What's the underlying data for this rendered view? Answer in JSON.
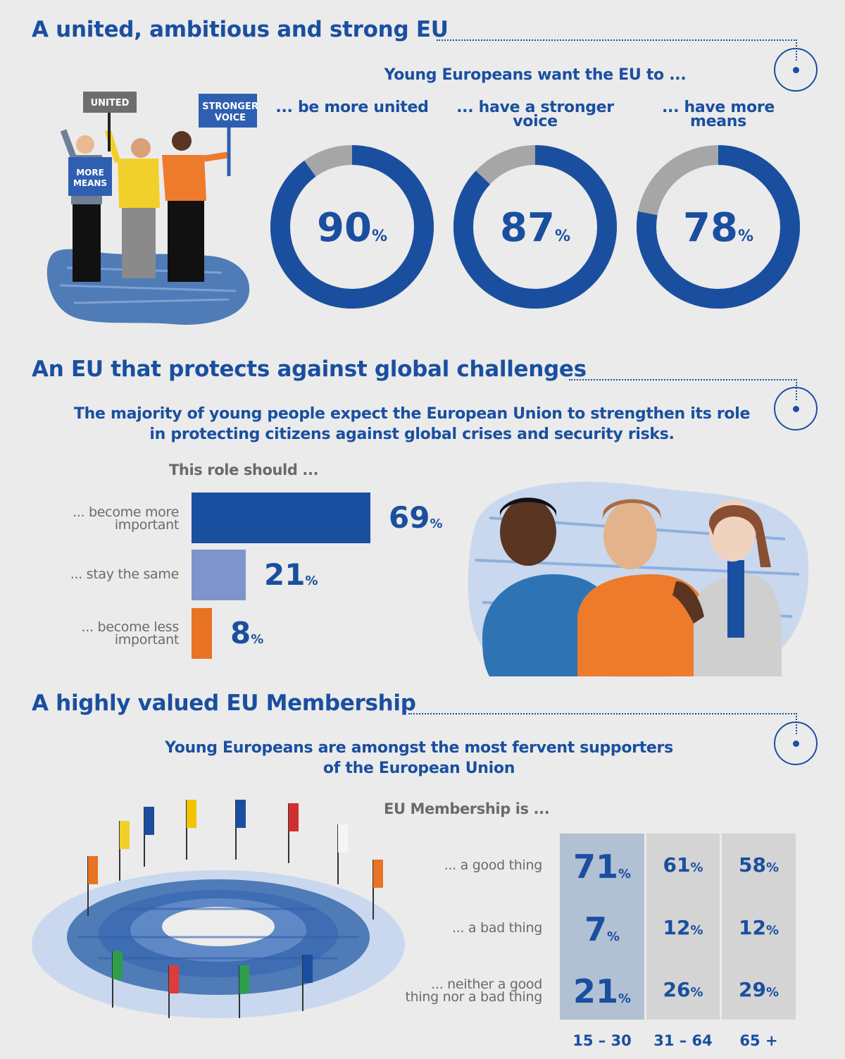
{
  "sections": [
    {
      "title": "A united, ambitious and strong EU"
    },
    {
      "title": "An EU that protects against global challenges"
    },
    {
      "title": "A highly valued EU Membership"
    }
  ],
  "section1": {
    "subtitle": "Young Europeans want the EU to ...",
    "signs": {
      "united": "UNITED",
      "stronger_voice_1": "STRONGER",
      "stronger_voice_2": "VOICE",
      "more_means_1": "MORE",
      "more_means_2": "MEANS"
    }
  },
  "section2": {
    "subtitle_line1": "The majority of young people expect the European Union to strengthen its role",
    "subtitle_line2": "in protecting citizens against global crises and security risks.",
    "bars_header": "This role should ..."
  },
  "section3": {
    "subtitle_line1": "Young Europeans are amongst the most fervent supporters",
    "subtitle_line2": "of the European Union",
    "table_header": "EU Membership is ..."
  },
  "colors": {
    "blue": "#1a4fa0",
    "light_blue": "#7e95cc",
    "orange": "#e87324",
    "ring_grey": "#a6a6a6",
    "col_highlight": "#b1c0d2",
    "col_grey": "#d4d4d4"
  },
  "chart_data": [
    {
      "type": "pie",
      "variant": "donut",
      "title": "Young Europeans want the EU to ...",
      "unit": "%",
      "items": [
        {
          "label_line1": "... be more united",
          "label_line2": "",
          "value": 90
        },
        {
          "label_line1": "... have a stronger",
          "label_line2": "voice",
          "value": 87
        },
        {
          "label_line1": "... have more",
          "label_line2": "means",
          "value": 78
        }
      ]
    },
    {
      "type": "bar",
      "orientation": "horizontal",
      "title": "This role should ...",
      "unit": "%",
      "xlim": [
        0,
        69
      ],
      "items": [
        {
          "label_line1": "... become more",
          "label_line2": "important",
          "value": 69,
          "color": "#1a4fa0"
        },
        {
          "label_line1": "... stay the same",
          "label_line2": "",
          "value": 21,
          "color": "#7e95cc"
        },
        {
          "label_line1": "... become less",
          "label_line2": "important",
          "value": 8,
          "color": "#e87324"
        }
      ]
    },
    {
      "type": "table",
      "title": "EU Membership is ...",
      "unit": "%",
      "columns": [
        "15 – 30",
        "31 – 64",
        "65 +"
      ],
      "rows": [
        {
          "label_line1": "... a good thing",
          "label_line2": "",
          "values": [
            71,
            61,
            58
          ]
        },
        {
          "label_line1": "... a bad thing",
          "label_line2": "",
          "values": [
            7,
            12,
            12
          ]
        },
        {
          "label_line1": "... neither a good",
          "label_line2": "thing nor a bad thing",
          "values": [
            21,
            26,
            29
          ]
        }
      ]
    }
  ]
}
